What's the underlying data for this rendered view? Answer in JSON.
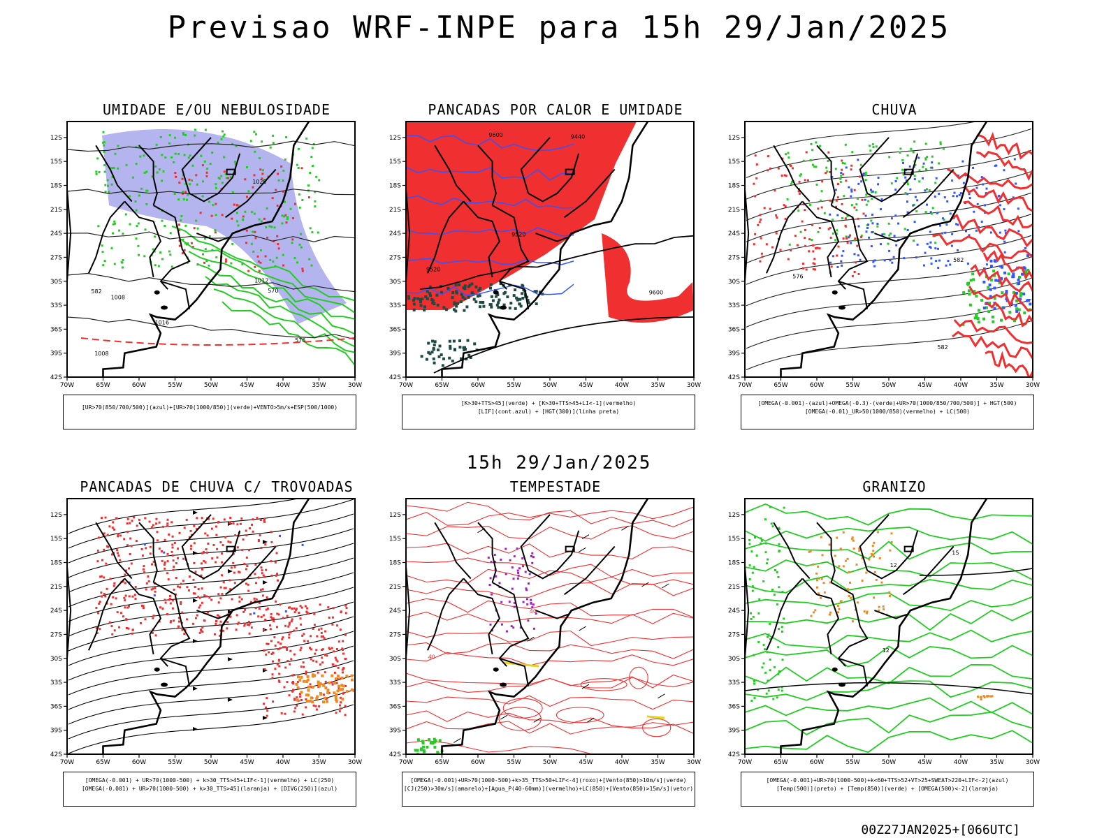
{
  "title": "Previsao WRF-INPE  para 15h 29/Jan/2025",
  "mid_time": "15h 29/Jan/2025",
  "footer": "00Z27JAN2025+[066UTC]",
  "axes": {
    "lat_labels": [
      "12S",
      "15S",
      "18S",
      "21S",
      "24S",
      "27S",
      "30S",
      "33S",
      "36S",
      "39S",
      "42S"
    ],
    "lon_labels": [
      "70W",
      "65W",
      "60W",
      "55W",
      "50W",
      "45W",
      "40W",
      "35W",
      "30W"
    ]
  },
  "panels": [
    {
      "title": "UMIDADE E/OU NEBULOSIDADE",
      "legend": [
        "[UR>70(850/700/500)](azul)+[UR>70(1000/850)](verde)+VENTO>5m/s+ESP(500/1000)"
      ],
      "contour_labels": [
        "1008",
        "1008",
        "1012",
        "1016",
        "1020",
        "570",
        "576",
        "582"
      ]
    },
    {
      "title": "PANCADAS POR CALOR E UMIDADE",
      "legend": [
        "[K>30+TTS>45](verde) + [K>30+TTS>45+LI<-1](vermelho)",
        "[LIF](cont.azul) + [HGT(300)](linha preta)"
      ],
      "contour_labels": [
        "9600",
        "9600",
        "9520",
        "9440",
        "9520"
      ]
    },
    {
      "title": "CHUVA",
      "legend": [
        "[OMEGA(-0.001)-(azul)+OMEGA(-0.3)-(verde)+UR>70(1000/850/700/500)] + HGT(500)",
        "[OMEGA(-0.01)_UR>50(1000/850)(vermelho) + LC(500)"
      ],
      "contour_labels": [
        "582",
        "582",
        "576"
      ]
    },
    {
      "title": "PANCADAS DE CHUVA C/ TROVOADAS",
      "legend": [
        "[OMEGA(-0.001) + UR>70(1000-500) + k>30_TTS>45+LIF<-1](vermelho) + LC(250)",
        "[OMEGA(-0.001) + UR>70(1000-500) + k>30_TTS>45](laranja) + [DIVG(250)](azul)"
      ],
      "contour_labels": []
    },
    {
      "title": "TEMPESTADE",
      "legend": [
        "[OMEGA(-0.001)+UR>70(1000-500)+k>35_TTS>50+LIF<-4](roxo)+[Vento(850)>10m/s](verde)",
        "[CJ(250)>30m/s](amarelo)+[Agua_P(40-60mm)](vermelho)+LC(850)+[Vento(850)>15m/s](vetor)"
      ],
      "contour_labels": [
        "40",
        "40"
      ]
    },
    {
      "title": "GRANIZO",
      "legend": [
        "[OMEGA(-0.001)+UR>70(1000-500)+k<60+TTS>52+VT>25+SWEAT>220+LIF<-2](azul)",
        "[Temp(500)](preto) + [Temp(850)](verde) + [OMEGA(500)<-2](laranja)"
      ],
      "contour_labels": [
        "12",
        "12",
        "15"
      ]
    }
  ],
  "colors": {
    "red": "#f03030",
    "green": "#22cc22",
    "blue": "#3355ff",
    "lavender": "#b4b4ee",
    "orange": "#f08a20",
    "purple": "#a020c0",
    "yellow": "#e6d21e",
    "darkteal": "#1e4a44",
    "black": "#000000"
  }
}
